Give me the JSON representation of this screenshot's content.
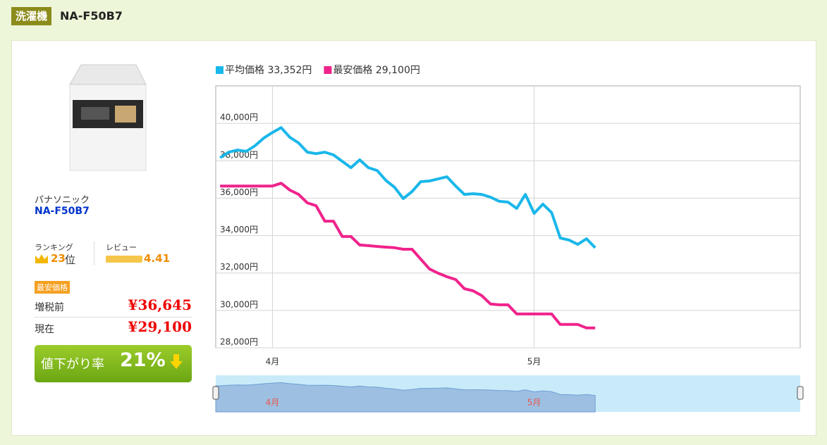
{
  "header": {
    "category": "洗濯機",
    "title": "NA-F50B7"
  },
  "product": {
    "brand": "パナソニック",
    "model": "NA-F50B7",
    "ranking_label": "ランキング",
    "rank": "23",
    "rank_unit": "位",
    "review_label": "レビュー",
    "rating": "4.41",
    "lowest_badge": "最安価格",
    "price_before_label": "増税前",
    "price_before": "¥36,645",
    "price_now_label": "現在",
    "price_now": "¥29,100",
    "drop_label": "値下がり率",
    "drop_rate": "21%"
  },
  "chart_data": {
    "type": "line",
    "categories": [
      null,
      null,
      null,
      null,
      null,
      null,
      "4月",
      null,
      null,
      null,
      null,
      null,
      null,
      null,
      null,
      null,
      null,
      null,
      null,
      null,
      null,
      null,
      null,
      null,
      null,
      null,
      null,
      null,
      null,
      null,
      null,
      null,
      null,
      null,
      null,
      null,
      "5月",
      null,
      null,
      null,
      null,
      null,
      null,
      null,
      null,
      null,
      null,
      null,
      null,
      null,
      null,
      null,
      null,
      null,
      null,
      null,
      null,
      null,
      null,
      null,
      null,
      null,
      null,
      null,
      null,
      null,
      null
    ],
    "series": [
      {
        "name": "平均価格 33,352円",
        "color": "#1ab7ea",
        "values": [
          38160,
          38460,
          38570,
          38500,
          38800,
          39210,
          39510,
          39770,
          39250,
          38950,
          38460,
          38380,
          38460,
          38310,
          37970,
          37630,
          38050,
          37630,
          37480,
          36950,
          36580,
          35980,
          36350,
          36880,
          36920,
          37030,
          37140,
          36650,
          36200,
          36240,
          36200,
          36050,
          35830,
          35790,
          35450,
          36200,
          35190,
          35680,
          35230,
          33870,
          33760,
          33530,
          33830,
          33350,
          null,
          null,
          null,
          null,
          null,
          null,
          null,
          null,
          null,
          null,
          null,
          null,
          null,
          null,
          null,
          null,
          null,
          null,
          null,
          null,
          null,
          null,
          null
        ]
      },
      {
        "name": "最安価格 29,100円",
        "color": "#f0238c",
        "values": [
          36650,
          36650,
          36650,
          36650,
          36650,
          36650,
          36650,
          36800,
          36430,
          36200,
          35750,
          35600,
          34770,
          34770,
          33950,
          33950,
          33500,
          33460,
          33420,
          33380,
          33350,
          33270,
          33270,
          32740,
          32220,
          31990,
          31800,
          31650,
          31160,
          31050,
          30790,
          30340,
          30300,
          30300,
          29810,
          29810,
          29810,
          29810,
          29810,
          29250,
          29250,
          29250,
          29060,
          29060,
          null,
          null,
          null,
          null,
          null,
          null,
          null,
          null,
          null,
          null,
          null,
          null,
          null,
          null,
          null,
          null,
          null,
          null,
          null,
          null,
          null,
          null,
          null
        ]
      }
    ],
    "ylim": [
      28000,
      42000
    ],
    "yticks": [
      {
        "value": 28000,
        "label": "28,000円"
      },
      {
        "value": 30000,
        "label": "30,000円"
      },
      {
        "value": 32000,
        "label": "32,000円"
      },
      {
        "value": 34000,
        "label": "34,000円"
      },
      {
        "value": 36000,
        "label": "36,000円"
      },
      {
        "value": 38000,
        "label": "38,000円"
      },
      {
        "value": 40000,
        "label": "40,000円"
      }
    ],
    "grid": true
  }
}
